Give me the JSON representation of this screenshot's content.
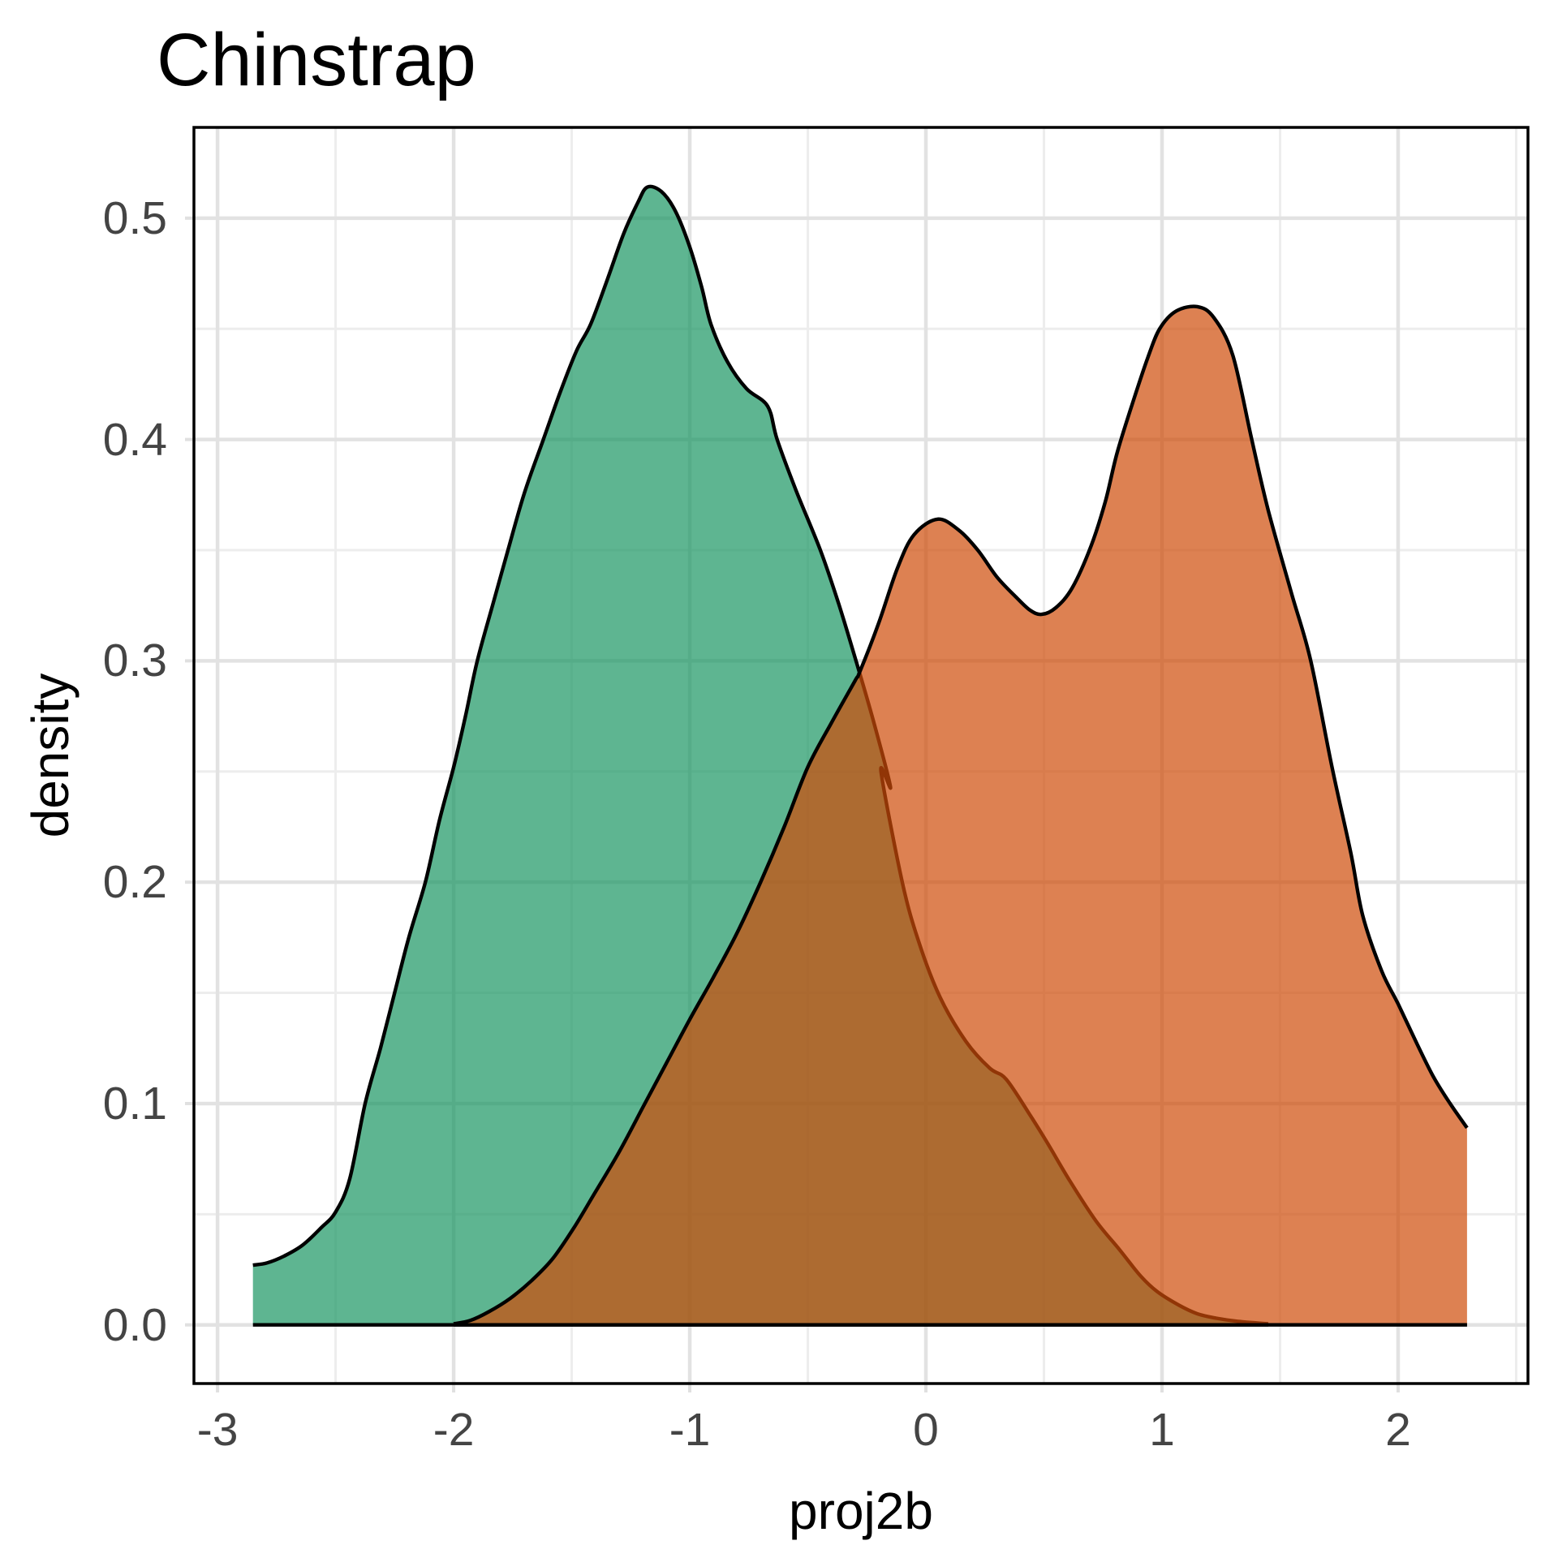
{
  "title": "Chinstrap",
  "axes": {
    "x": {
      "label": "proj2b",
      "range": [
        -3.1,
        2.55
      ]
    },
    "y": {
      "label": "density",
      "range": [
        -0.0265,
        0.541
      ]
    }
  },
  "colors": {
    "panel_background": "#FFFFFF",
    "panel_border": "#000000",
    "grid_major": "#E2E2E2",
    "grid_minor": "#EDEDED",
    "tick_mark": "#E0E0E0",
    "curve_stroke": "#000000",
    "tick_label": "#444444",
    "green_fill_observed": "#5FB592",
    "orange_fill_observed": "#DD8152",
    "overlap_observed": "#AE6830"
  },
  "chart_data": {
    "type": "area",
    "subtype": "overlapping-density-curves",
    "title": "Chinstrap",
    "xlabel": "proj2b",
    "ylabel": "density",
    "xlim": [
      -3.1,
      2.55
    ],
    "ylim": [
      -0.0265,
      0.541
    ],
    "x_major_ticks": [
      -3,
      -2,
      -1,
      0,
      1,
      2
    ],
    "x_tick_labels": [
      "-3",
      "-2",
      "-1",
      "0",
      "1",
      "2"
    ],
    "y_major_ticks": [
      0,
      0.1,
      0.2,
      0.3,
      0.4,
      0.5
    ],
    "y_tick_labels": [
      "0.0",
      "0.1",
      "0.2",
      "0.3",
      "0.4",
      "0.5"
    ],
    "grid": {
      "major": true,
      "minor": true,
      "x_minor_offset": 0.5,
      "y_minor_offset": 0.05
    },
    "legend": "none",
    "fill_opacity": 0.7,
    "stroke_width": 4.4,
    "series": [
      {
        "name": "green-density",
        "base_color": "#1A9563",
        "peak": {
          "x": -1.18,
          "density": 0.514
        },
        "points": [
          [
            -2.85,
            0.027
          ],
          [
            -2.79,
            0.028
          ],
          [
            -2.72,
            0.031
          ],
          [
            -2.64,
            0.036
          ],
          [
            -2.56,
            0.044
          ],
          [
            -2.5,
            0.051
          ],
          [
            -2.44,
            0.066
          ],
          [
            -2.375,
            0.1
          ],
          [
            -2.31,
            0.125
          ],
          [
            -2.25,
            0.15
          ],
          [
            -2.19,
            0.175
          ],
          [
            -2.12,
            0.2
          ],
          [
            -2.06,
            0.228
          ],
          [
            -2.0,
            0.252
          ],
          [
            -1.95,
            0.275
          ],
          [
            -1.9,
            0.3
          ],
          [
            -1.83,
            0.327
          ],
          [
            -1.77,
            0.35
          ],
          [
            -1.7,
            0.376
          ],
          [
            -1.62,
            0.4
          ],
          [
            -1.55,
            0.421
          ],
          [
            -1.48,
            0.44
          ],
          [
            -1.42,
            0.452
          ],
          [
            -1.35,
            0.472
          ],
          [
            -1.28,
            0.493
          ],
          [
            -1.22,
            0.507
          ],
          [
            -1.18,
            0.514
          ],
          [
            -1.12,
            0.512
          ],
          [
            -1.06,
            0.503
          ],
          [
            -1.0,
            0.487
          ],
          [
            -0.95,
            0.469
          ],
          [
            -0.91,
            0.452
          ],
          [
            -0.84,
            0.435
          ],
          [
            -0.76,
            0.423
          ],
          [
            -0.67,
            0.415
          ],
          [
            -0.63,
            0.4
          ],
          [
            -0.55,
            0.377
          ],
          [
            -0.447,
            0.35
          ],
          [
            -0.37,
            0.326
          ],
          [
            -0.296,
            0.3
          ],
          [
            -0.22,
            0.272
          ],
          [
            -0.15,
            0.243
          ],
          [
            -0.19,
            0.25
          ],
          [
            -0.1,
            0.2
          ],
          [
            -0.03,
            0.173
          ],
          [
            0.06,
            0.148
          ],
          [
            0.17,
            0.128
          ],
          [
            0.27,
            0.116
          ],
          [
            0.34,
            0.111
          ],
          [
            0.44,
            0.095
          ],
          [
            0.51,
            0.083
          ],
          [
            0.61,
            0.065
          ],
          [
            0.72,
            0.047
          ],
          [
            0.82,
            0.034
          ],
          [
            0.91,
            0.022
          ],
          [
            0.98,
            0.015
          ],
          [
            1.07,
            0.009
          ],
          [
            1.15,
            0.005
          ],
          [
            1.23,
            0.003
          ],
          [
            1.33,
            0.0015
          ],
          [
            1.45,
            0.0005
          ]
        ]
      },
      {
        "name": "orange-density",
        "base_color": "#CE4B08",
        "peaks": [
          {
            "x": 0.05,
            "density": 0.364
          },
          {
            "x": 1.15,
            "density": 0.46
          }
        ],
        "valley": {
          "x": 0.49,
          "density": 0.321
        },
        "points": [
          [
            -2.0,
            0.0005
          ],
          [
            -1.93,
            0.002
          ],
          [
            -1.85,
            0.006
          ],
          [
            -1.76,
            0.012
          ],
          [
            -1.67,
            0.02
          ],
          [
            -1.58,
            0.03
          ],
          [
            -1.49,
            0.044
          ],
          [
            -1.4,
            0.06
          ],
          [
            -1.3,
            0.078
          ],
          [
            -1.2,
            0.098
          ],
          [
            -1.1,
            0.118
          ],
          [
            -1.0,
            0.138
          ],
          [
            -0.9,
            0.157
          ],
          [
            -0.8,
            0.177
          ],
          [
            -0.7,
            0.2
          ],
          [
            -0.6,
            0.225
          ],
          [
            -0.5,
            0.252
          ],
          [
            -0.4,
            0.272
          ],
          [
            -0.3,
            0.291
          ],
          [
            -0.28,
            0.295
          ],
          [
            -0.2,
            0.317
          ],
          [
            -0.12,
            0.342
          ],
          [
            -0.05,
            0.357
          ],
          [
            0.05,
            0.364
          ],
          [
            0.14,
            0.359
          ],
          [
            0.22,
            0.35
          ],
          [
            0.3,
            0.338
          ],
          [
            0.38,
            0.329
          ],
          [
            0.44,
            0.323
          ],
          [
            0.49,
            0.321
          ],
          [
            0.55,
            0.324
          ],
          [
            0.62,
            0.333
          ],
          [
            0.7,
            0.352
          ],
          [
            0.76,
            0.372
          ],
          [
            0.81,
            0.394
          ],
          [
            0.88,
            0.418
          ],
          [
            0.94,
            0.437
          ],
          [
            0.99,
            0.45
          ],
          [
            1.06,
            0.458
          ],
          [
            1.15,
            0.46
          ],
          [
            1.22,
            0.455
          ],
          [
            1.3,
            0.438
          ],
          [
            1.38,
            0.4
          ],
          [
            1.45,
            0.368
          ],
          [
            1.55,
            0.33
          ],
          [
            1.63,
            0.3
          ],
          [
            1.72,
            0.252
          ],
          [
            1.8,
            0.213
          ],
          [
            1.85,
            0.185
          ],
          [
            1.93,
            0.16
          ],
          [
            2.0,
            0.145
          ],
          [
            2.08,
            0.127
          ],
          [
            2.15,
            0.112
          ],
          [
            2.22,
            0.1
          ],
          [
            2.292,
            0.089
          ]
        ]
      }
    ]
  }
}
